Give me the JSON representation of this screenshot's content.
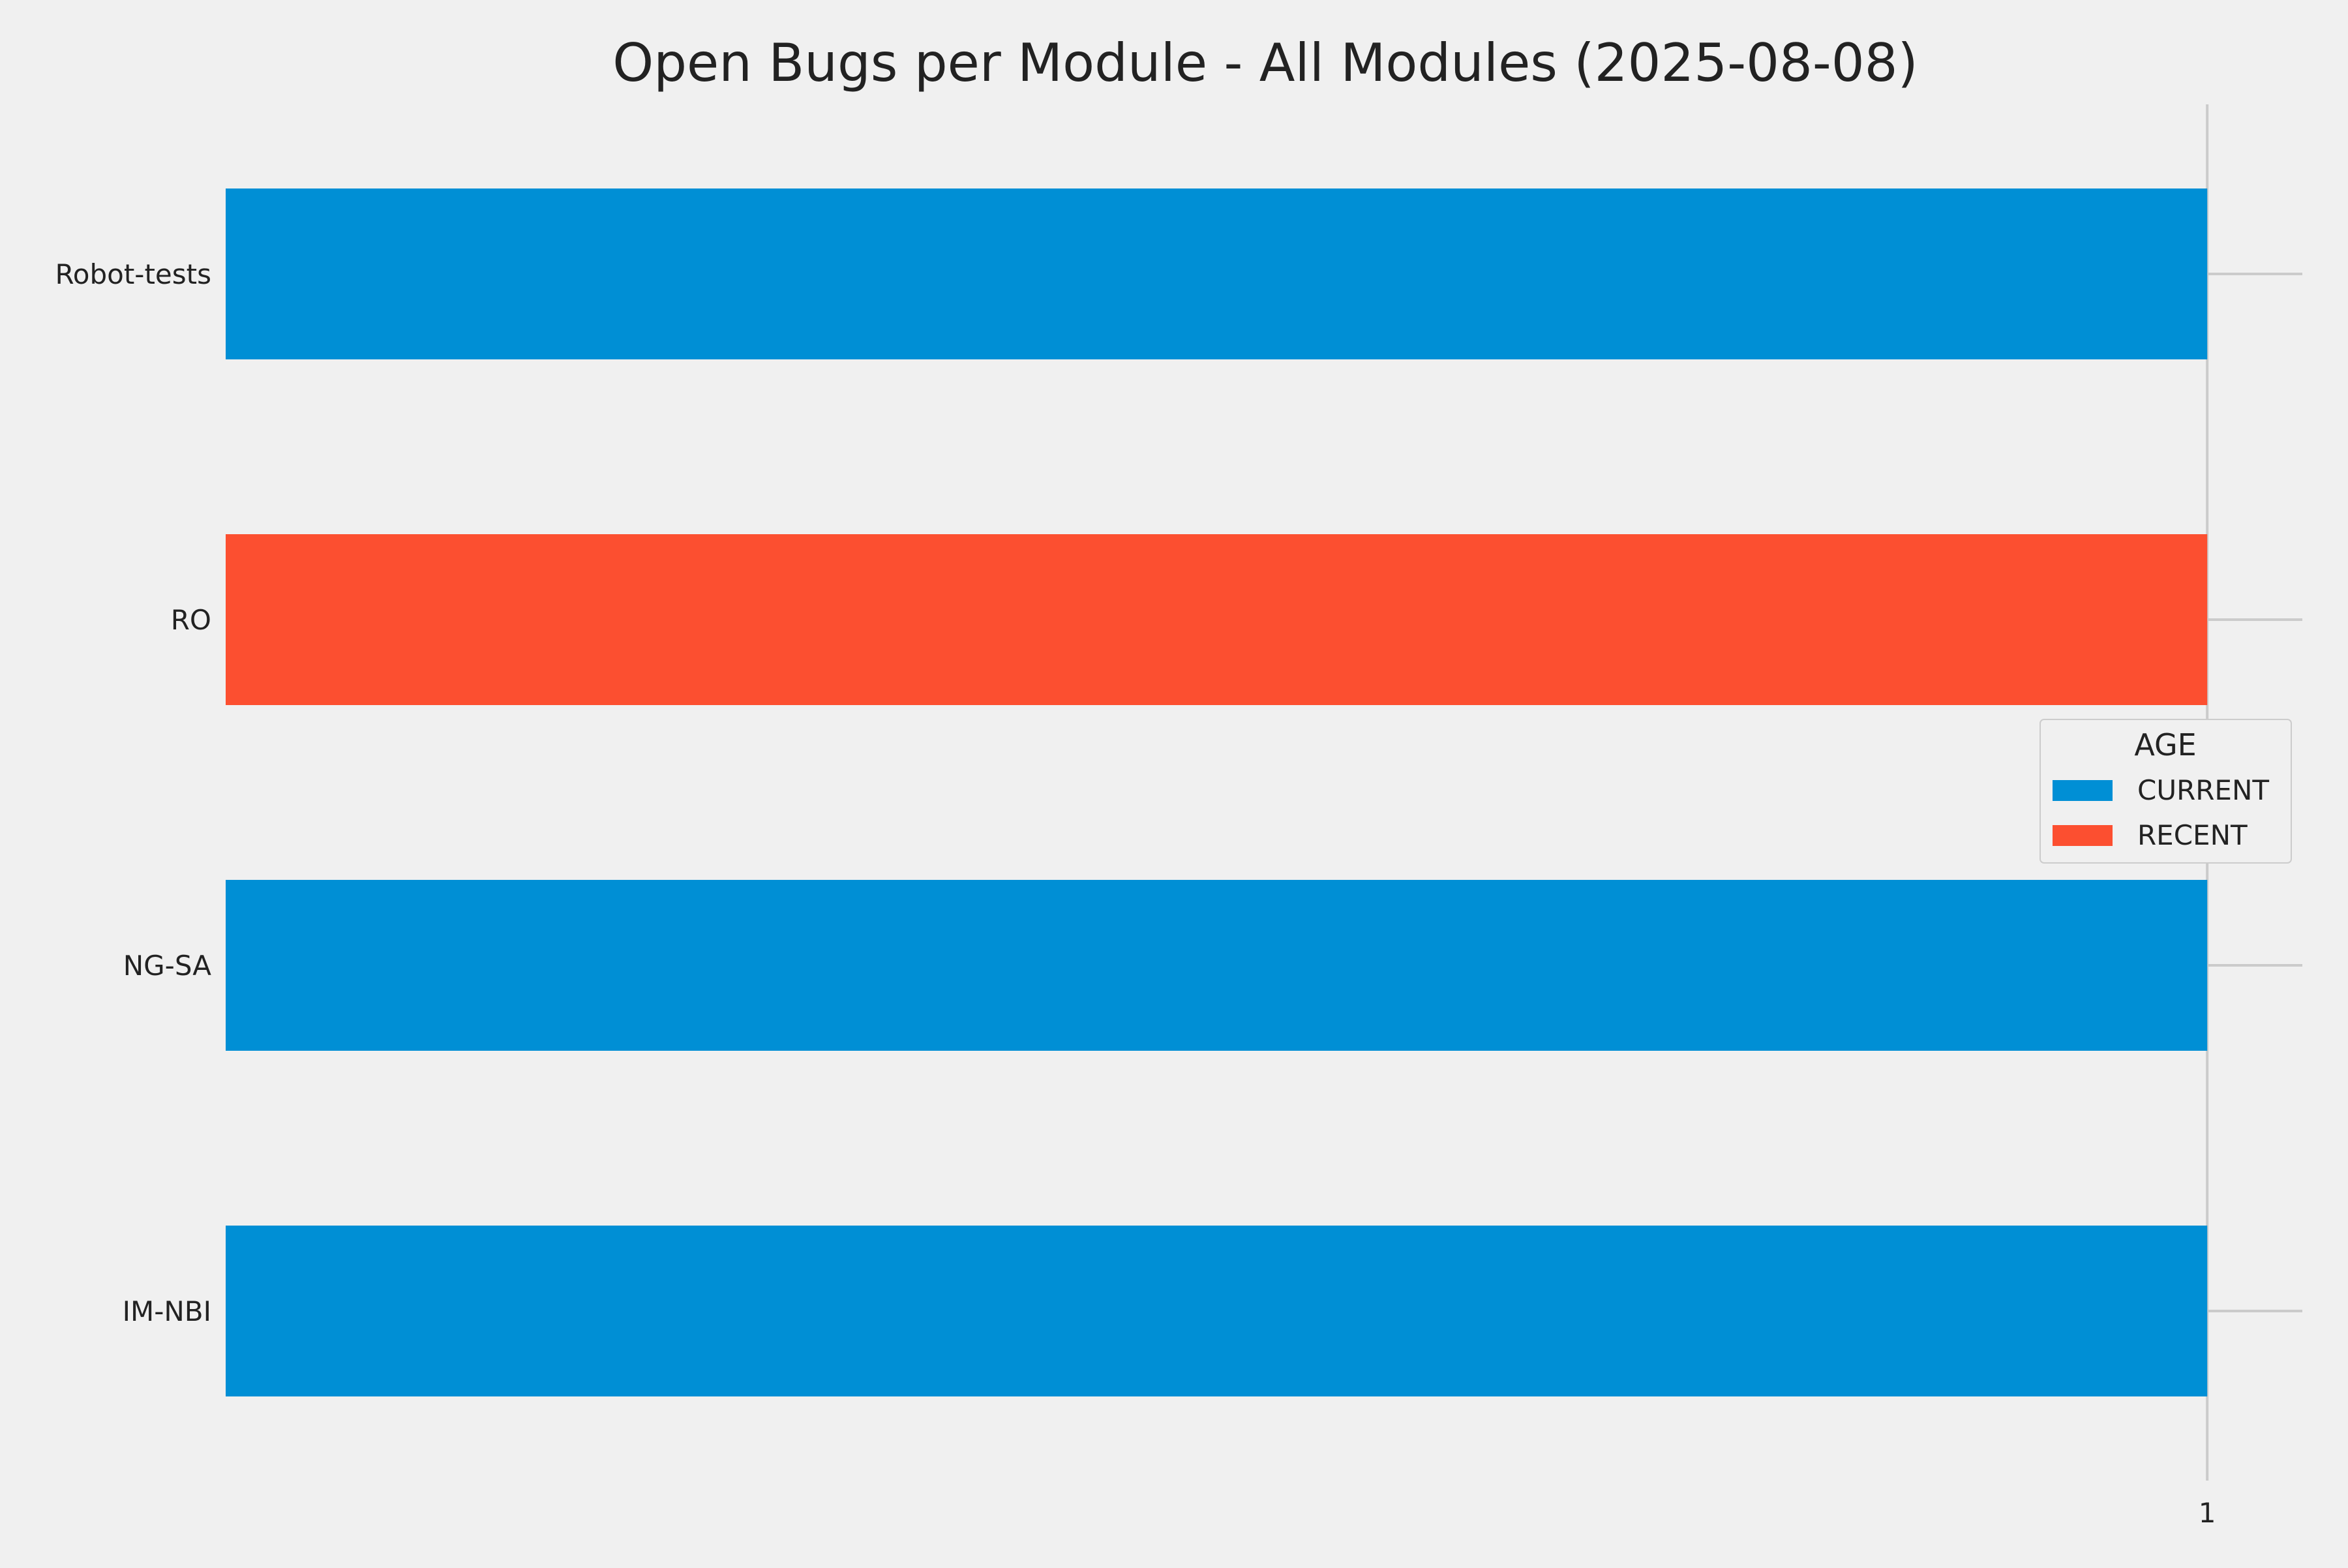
{
  "chart_data": {
    "type": "bar",
    "orientation": "horizontal",
    "title": "Open Bugs per Module - All Modules (2025-08-08)",
    "xlabel": "",
    "ylabel": "",
    "categories": [
      "Robot-tests",
      "RO",
      "NG-SA",
      "IM-NBI"
    ],
    "values": [
      1,
      1,
      1,
      1
    ],
    "bar_series": [
      "CURRENT",
      "RECENT",
      "CURRENT",
      "CURRENT"
    ],
    "series": [
      {
        "name": "CURRENT",
        "color": "#008fd5"
      },
      {
        "name": "RECENT",
        "color": "#fc4f30"
      }
    ],
    "xlim": [
      0,
      1.048
    ],
    "x_ticks": [
      1
    ],
    "grid": true,
    "legend": {
      "title": "AGE",
      "placement": "center-right"
    }
  },
  "colors": {
    "background": "#f0f0f0",
    "grid": "#cbcbcb",
    "text": "#222222"
  }
}
